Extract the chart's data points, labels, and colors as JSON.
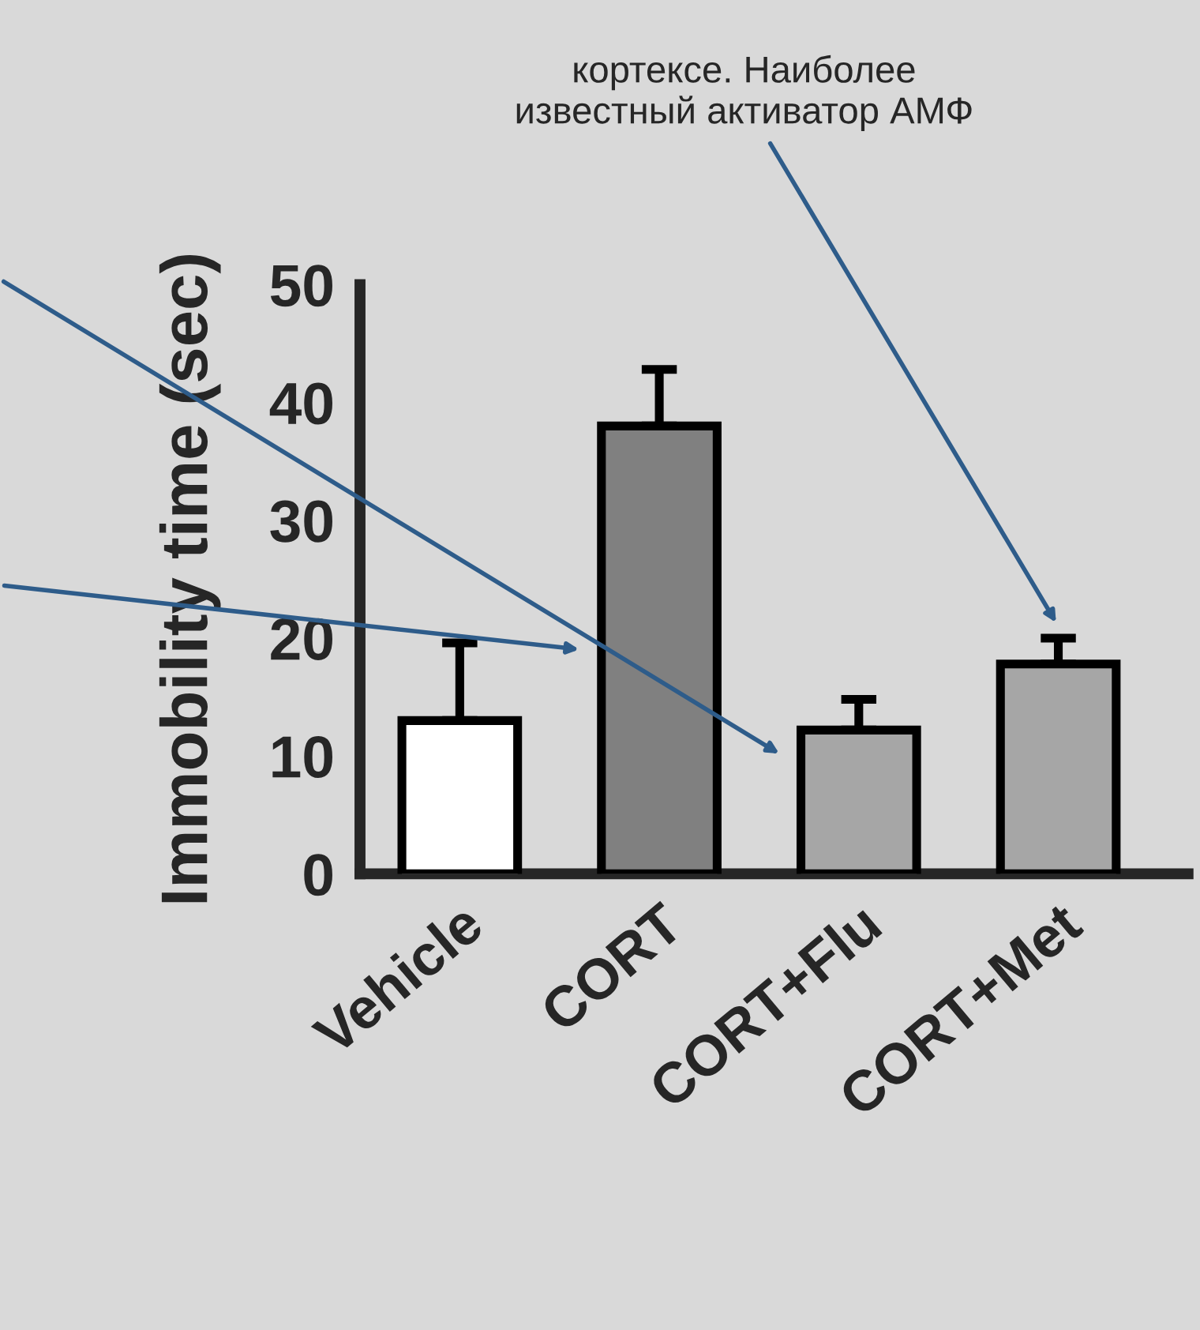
{
  "chart_data": {
    "type": "bar",
    "ylabel": "Immobility time (sec)",
    "categories": [
      "Vehicle",
      "CORT",
      "CORT+Flu",
      "CORT+Met"
    ],
    "values": [
      13,
      38,
      12.2,
      17.8
    ],
    "errors": [
      [
        13,
        19.6
      ],
      [
        38,
        42.8
      ],
      [
        12.2,
        14.8
      ],
      [
        17.8,
        20
      ]
    ],
    "colors": [
      "#ffffff",
      "#808080",
      "#a6a6a6",
      "#a6a6a6"
    ],
    "ylim": [
      0,
      50
    ],
    "yticks": [
      0,
      10,
      20,
      30,
      40,
      50
    ],
    "grid": false,
    "legend": false,
    "annotations": [
      "кортексе. Наиболее\nизвестный активатор АМФ"
    ]
  }
}
